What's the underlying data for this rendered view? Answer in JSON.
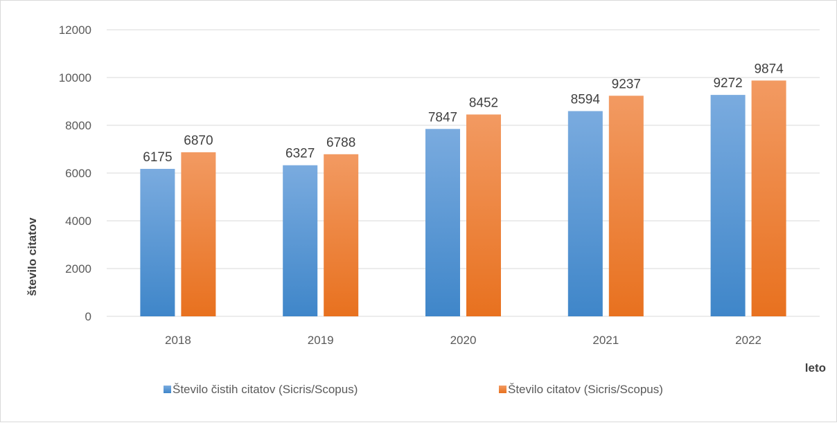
{
  "chart_data": {
    "type": "bar",
    "title": "",
    "xlabel": "leto",
    "ylabel": "število citatov",
    "categories": [
      "2018",
      "2019",
      "2020",
      "2021",
      "2022"
    ],
    "series": [
      {
        "name": "Število čistih citatov (Sicris/Scopus)",
        "values": [
          6175,
          6327,
          7847,
          8594,
          9272
        ],
        "color_top": "#7aabdf",
        "color_bottom": "#3f86c9"
      },
      {
        "name": "Število citatov (Sicris/Scopus)",
        "values": [
          6870,
          6788,
          8452,
          9237,
          9874
        ],
        "color_top": "#f29a62",
        "color_bottom": "#e8711f"
      }
    ],
    "ylim": [
      0,
      12000
    ],
    "yticks": [
      "0",
      "2000",
      "4000",
      "6000",
      "8000",
      "10000",
      "12000"
    ],
    "grid": true,
    "legend_position": "bottom"
  }
}
